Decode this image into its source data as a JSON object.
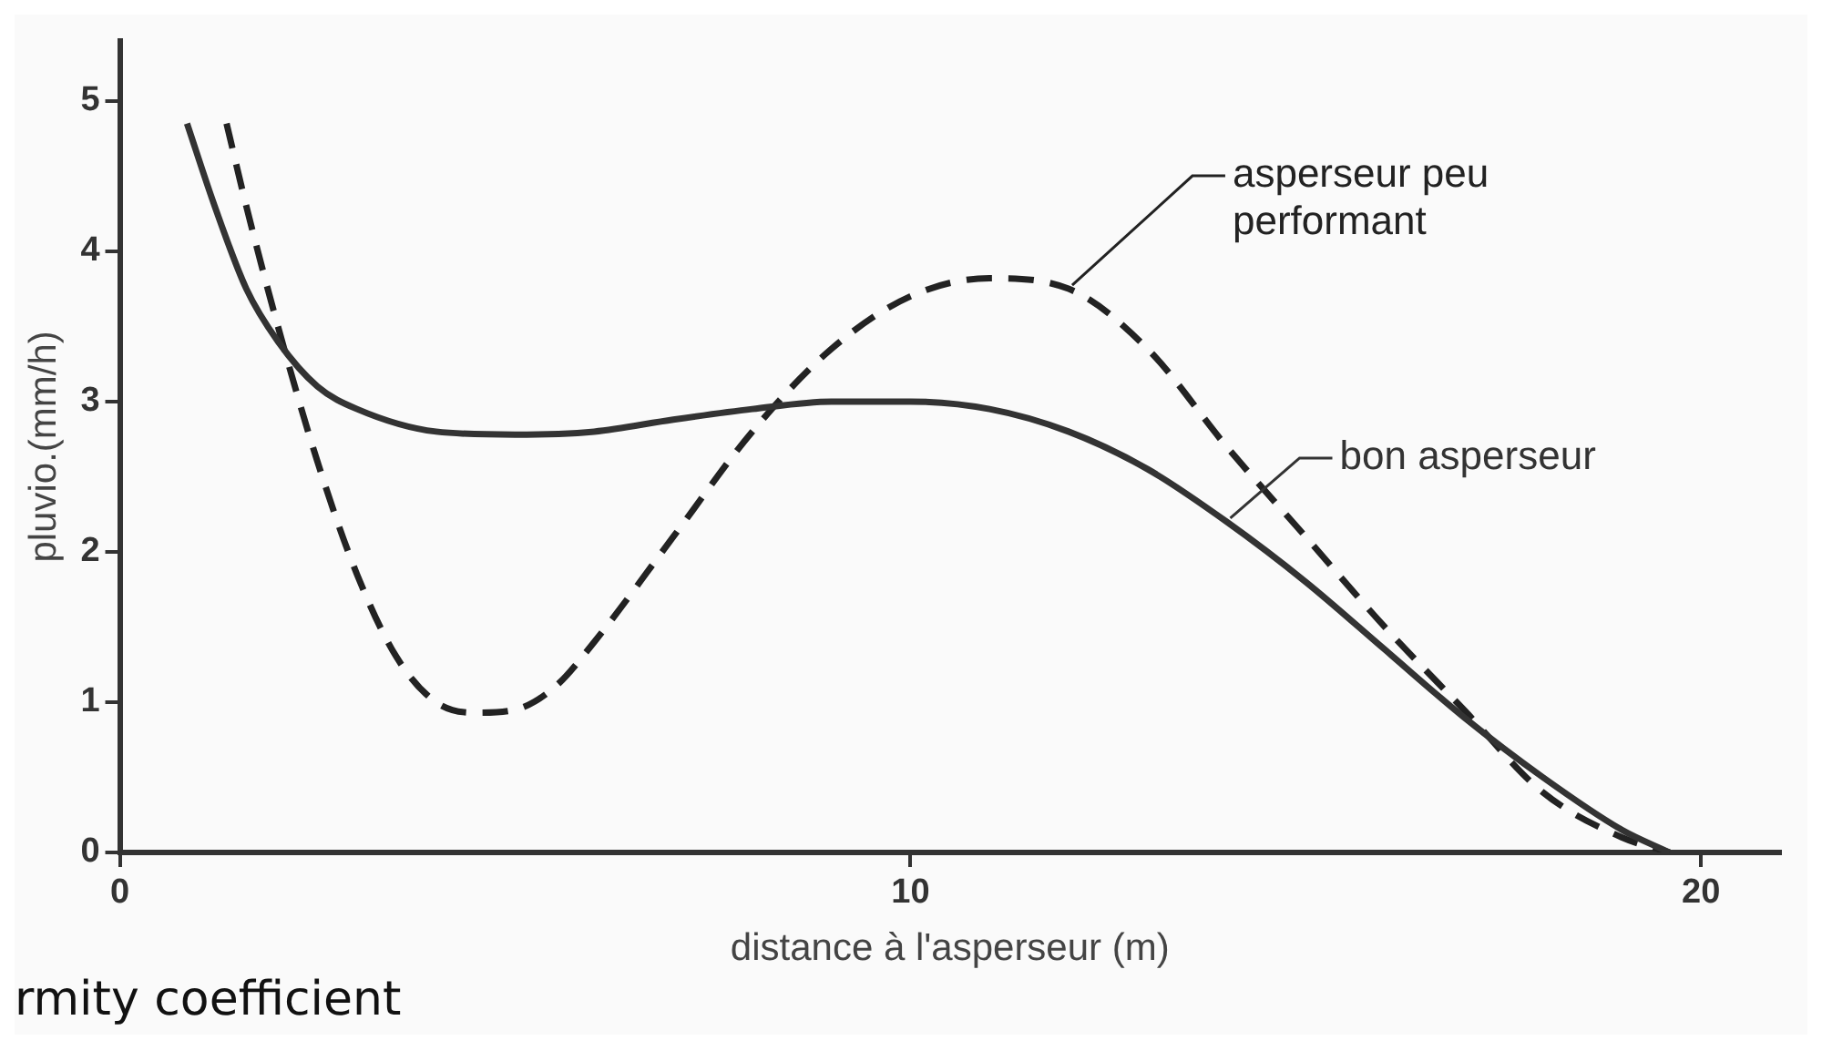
{
  "chart_data": {
    "type": "line",
    "xlabel": "distance à l'asperseur (m)",
    "ylabel": "pluvio.(mm/h)",
    "xlim": [
      0,
      21
    ],
    "ylim": [
      0,
      5.4
    ],
    "xticks": [
      0,
      10,
      20
    ],
    "yticks": [
      0,
      1,
      2,
      3,
      4,
      5
    ],
    "grid": false,
    "legend": false,
    "marker": "none",
    "annotations": [
      "rmity coefficient"
    ],
    "series": [
      {
        "name": "bon asperseur",
        "color": "#333333",
        "line_style": "solid",
        "x": [
          0.85,
          1.2,
          1.6,
          2,
          2.5,
          3,
          4,
          5,
          6,
          7,
          8,
          9,
          10,
          11,
          12,
          13,
          14,
          15,
          16,
          17,
          18,
          19,
          19.6
        ],
        "values": [
          4.85,
          4.3,
          3.75,
          3.4,
          3.1,
          2.95,
          2.8,
          2.78,
          2.8,
          2.88,
          2.95,
          3.0,
          3.0,
          2.95,
          2.8,
          2.55,
          2.2,
          1.8,
          1.35,
          0.9,
          0.5,
          0.15,
          0
        ]
      },
      {
        "name": "asperseur peu performant",
        "color": "#222222",
        "line_style": "dashed",
        "x": [
          1.35,
          1.6,
          2,
          2.5,
          3,
          3.5,
          4,
          4.5,
          5,
          5.5,
          6,
          7,
          8,
          9,
          10,
          11,
          12,
          13,
          14,
          15,
          16,
          17,
          18,
          19,
          19.6
        ],
        "values": [
          4.85,
          4.3,
          3.5,
          2.6,
          1.85,
          1.3,
          1.0,
          0.93,
          0.95,
          1.1,
          1.4,
          2.1,
          2.8,
          3.35,
          3.7,
          3.82,
          3.75,
          3.35,
          2.7,
          2.1,
          1.5,
          0.95,
          0.4,
          0.1,
          0
        ]
      }
    ]
  }
}
